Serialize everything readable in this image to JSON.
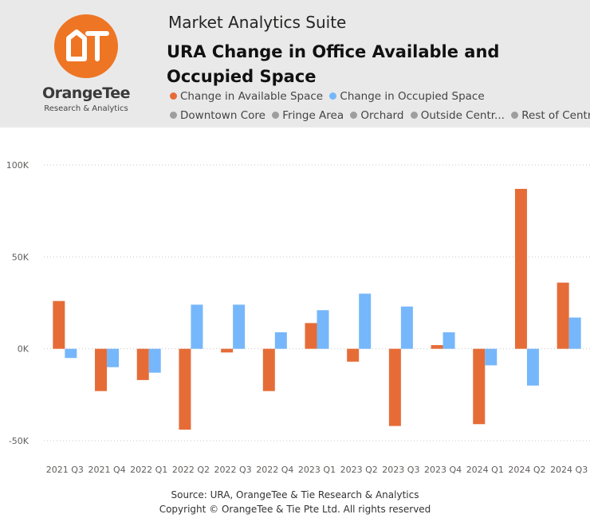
{
  "header": {
    "suite_title": "Market Analytics Suite",
    "logo_name": "OrangeTee",
    "logo_subtitle": "Research & Analytics",
    "logo_mark": "OT"
  },
  "legend": {
    "series": [
      {
        "label": "Change in Available Space",
        "color": "#e66c37"
      },
      {
        "label": "Change in Occupied Space",
        "color": "#76b7fb"
      }
    ],
    "regions": [
      {
        "label": "Downtown Core",
        "color": "#9e9e9e"
      },
      {
        "label": "Fringe Area",
        "color": "#9e9e9e"
      },
      {
        "label": "Orchard",
        "color": "#9e9e9e"
      },
      {
        "label": "Outside Centr...",
        "color": "#9e9e9e"
      },
      {
        "label": "Rest of Centr...",
        "color": "#9e9e9e"
      }
    ]
  },
  "chart_data": {
    "type": "bar",
    "title": "URA Change in Office Available and Occupied Space",
    "xlabel": "",
    "ylabel": "",
    "categories": [
      "2021 Q3",
      "2021 Q4",
      "2022 Q1",
      "2022 Q2",
      "2022 Q3",
      "2022 Q4",
      "2023 Q1",
      "2023 Q2",
      "2023 Q3",
      "2023 Q4",
      "2024 Q1",
      "2024 Q2",
      "2024 Q3"
    ],
    "series": [
      {
        "name": "Change in Available Space",
        "color": "#e66c37",
        "values": [
          26000,
          -23000,
          -17000,
          -44000,
          -2000,
          -23000,
          14000,
          -7000,
          -42000,
          2000,
          -41000,
          87000,
          36000
        ]
      },
      {
        "name": "Change in Occupied Space",
        "color": "#76b7fb",
        "values": [
          -5000,
          -10000,
          -13000,
          24000,
          24000,
          9000,
          21000,
          30000,
          23000,
          9000,
          -9000,
          -20000,
          17000
        ]
      }
    ],
    "ylim": [
      -50000,
      100000
    ],
    "yticks": [
      100000,
      50000,
      0,
      -50000
    ],
    "ytick_labels": [
      "100K",
      "50K",
      "0K",
      "-50K"
    ],
    "grid": true,
    "legend_position": "top"
  },
  "footer": {
    "source": "Source: URA, OrangeTee & Tie Research & Analytics",
    "copyright": "Copyright © OrangeTee & Tie Pte Ltd. All rights reserved"
  }
}
